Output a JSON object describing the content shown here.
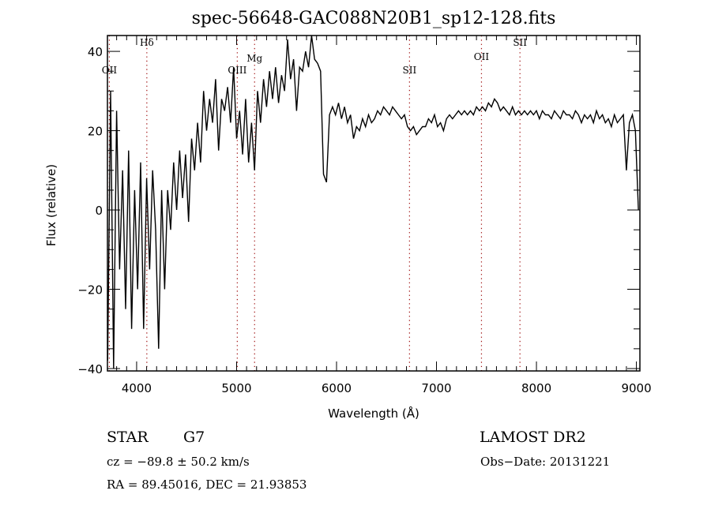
{
  "chart_data": {
    "type": "line",
    "title": "spec-56648-GAC088N20B1_sp12-128.fits",
    "xlabel": "Wavelength (Å)",
    "ylabel": "Flux (relative)",
    "xlim": [
      3708,
      9035
    ],
    "ylim": [
      -40.6,
      44
    ],
    "xticks": [
      4000,
      5000,
      6000,
      7000,
      8000,
      9000
    ],
    "xtick_labels": [
      "4000",
      "5000",
      "6000",
      "7000",
      "8000",
      "9000"
    ],
    "yticks": [
      -40,
      -20,
      0,
      20,
      40
    ],
    "ytick_labels": [
      "−40",
      "−20",
      "0",
      "20",
      "40"
    ],
    "grid": false,
    "series": [
      {
        "name": "spectrum",
        "x_start": 3710,
        "x_step": 30,
        "flux": [
          -38,
          30,
          -40,
          25,
          -15,
          10,
          -25,
          15,
          -30,
          5,
          -20,
          12,
          -30,
          8,
          -15,
          10,
          -5,
          -35,
          5,
          -20,
          5,
          -5,
          12,
          0,
          15,
          3,
          14,
          -3,
          18,
          10,
          22,
          12,
          30,
          20,
          28,
          22,
          33,
          15,
          28,
          25,
          31,
          22,
          36,
          18,
          25,
          14,
          28,
          12,
          22,
          10,
          30,
          22,
          33,
          26,
          35,
          28,
          36,
          27,
          34,
          30,
          43,
          33,
          38,
          25,
          36,
          35,
          40,
          36,
          44,
          38,
          37,
          35,
          9,
          7,
          24,
          26,
          24,
          27,
          23,
          26,
          22,
          24,
          18,
          21,
          20,
          23,
          21,
          24,
          22,
          23,
          25,
          24,
          26,
          25,
          24,
          26,
          25,
          24,
          23,
          24,
          21,
          20,
          21,
          19,
          20,
          21,
          21,
          23,
          22,
          24,
          21,
          22,
          20,
          23,
          24,
          23,
          24,
          25,
          24,
          25,
          24,
          25,
          24,
          26,
          25,
          26,
          25,
          27,
          26,
          28,
          27,
          25,
          26,
          25,
          24,
          26,
          24,
          25,
          24,
          25,
          24,
          25,
          24,
          25,
          23,
          25,
          24,
          24,
          23,
          25,
          24,
          23,
          25,
          24,
          24,
          23,
          25,
          24,
          22,
          24,
          23,
          24,
          22,
          25,
          23,
          24,
          22,
          23,
          21,
          24,
          22,
          23,
          24,
          10,
          22,
          24,
          20,
          0
        ]
      }
    ],
    "line_markers": [
      {
        "label": "OII",
        "wavelength": 3727
      },
      {
        "label": "Hδ",
        "wavelength": 4102
      },
      {
        "label": "OIII",
        "wavelength": 5007
      },
      {
        "label": "Mg",
        "wavelength": 5180
      },
      {
        "label": "SII",
        "wavelength": 6730
      },
      {
        "label": "OII",
        "wavelength": 7450
      },
      {
        "label": "SII",
        "wavelength": 7835
      }
    ],
    "marker_color": "#a01010",
    "line_color": "#000000"
  },
  "info": {
    "object_class": "STAR",
    "subclass": "G7",
    "survey": "LAMOST DR2",
    "cz": "cz = −89.8 ± 50.2 km/s",
    "obs_date": "Obs−Date: 20131221",
    "coords": "RA =  89.45016, DEC =  21.93853"
  }
}
